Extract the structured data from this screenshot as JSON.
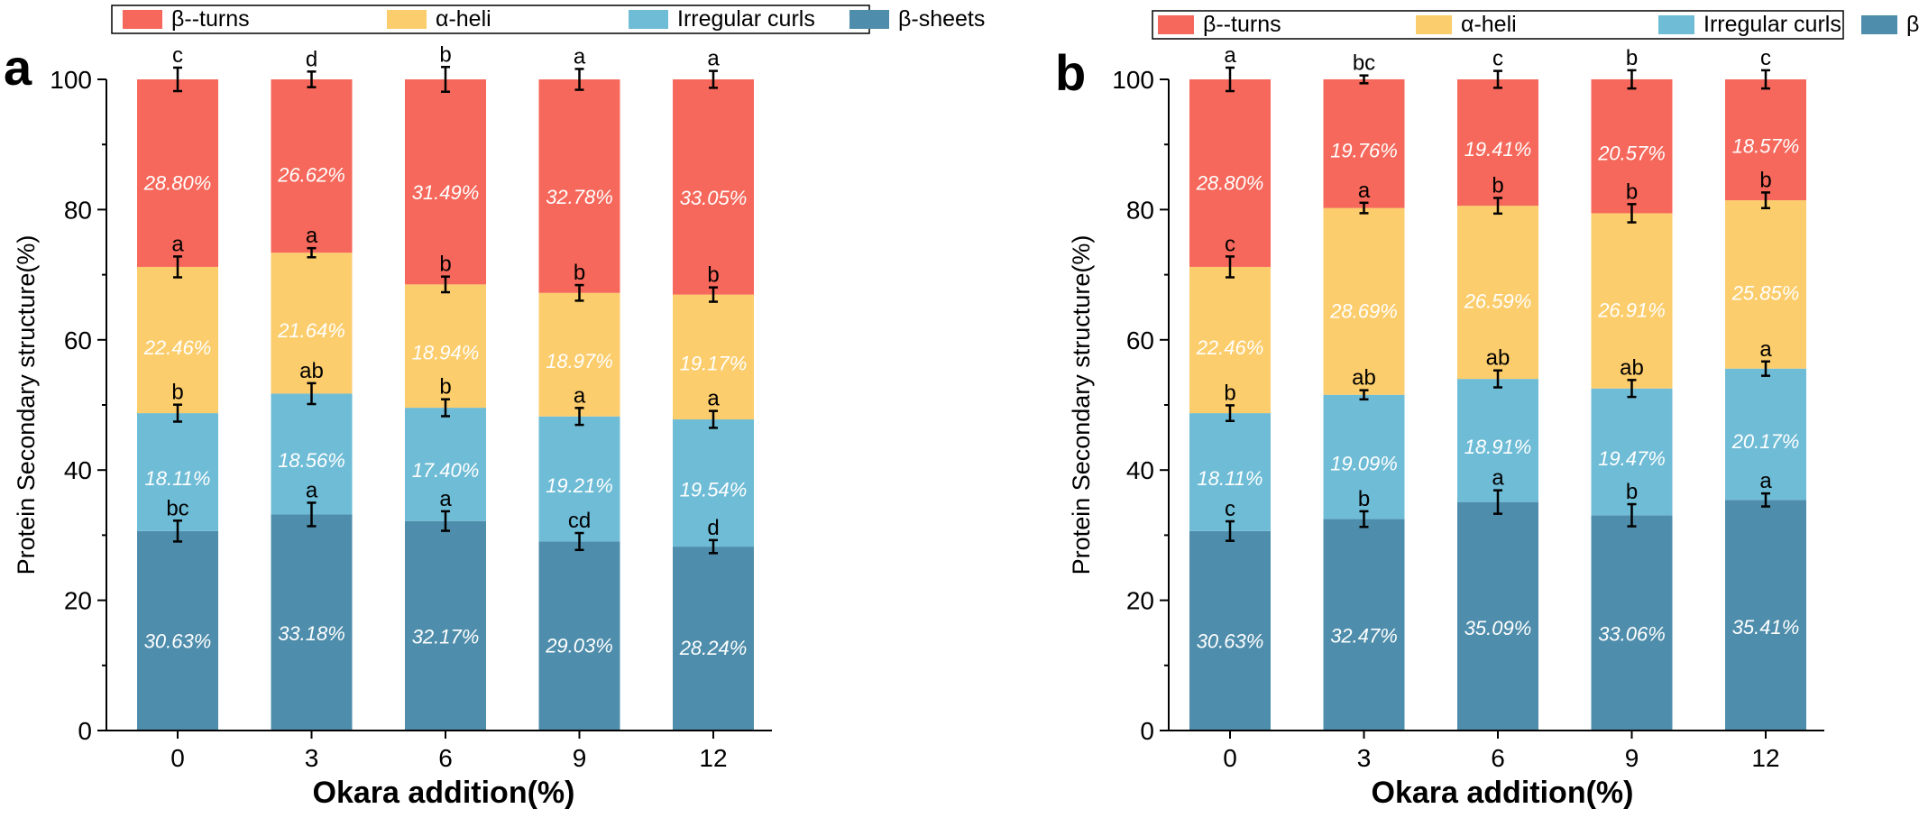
{
  "colors": {
    "beta_turns": "#F6685B",
    "alpha_helix": "#FCCD6C",
    "irregular_curls": "#6FBCD6",
    "beta_sheets": "#4E8DAB",
    "axis": "#000000",
    "segment_label": "#FFFFFF"
  },
  "chart_data": [
    {
      "panel_label": "a",
      "type": "bar",
      "stacked": true,
      "categories": [
        "0",
        "3",
        "6",
        "9",
        "12"
      ],
      "xlabel": "Okara addition(%)",
      "ylabel": "Protein Secondary structure(%)",
      "ylim": [
        0,
        100
      ],
      "yticks": [
        0,
        20,
        40,
        60,
        80,
        100
      ],
      "legend": {
        "placement": "top",
        "entries": [
          "β--turns",
          "α-heli",
          "Irregular curls",
          "β-sheets"
        ]
      },
      "series": [
        {
          "name": "β-sheets",
          "color_key": "beta_sheets",
          "values": [
            30.63,
            33.18,
            32.17,
            29.03,
            28.24
          ],
          "labels": [
            "30.63%",
            "33.18%",
            "32.17%",
            "29.03%",
            "28.24%"
          ],
          "errors": [
            1.6,
            1.8,
            1.5,
            1.3,
            1.0
          ],
          "letters": [
            "bc",
            "a",
            "a",
            "cd",
            "d"
          ]
        },
        {
          "name": "Irregular curls",
          "color_key": "irregular_curls",
          "values": [
            18.11,
            18.56,
            17.4,
            19.21,
            19.54
          ],
          "labels": [
            "18.11%",
            "18.56%",
            "17.40%",
            "19.21%",
            "19.54%"
          ],
          "errors": [
            1.3,
            1.6,
            1.3,
            1.3,
            1.3
          ],
          "letters": [
            "b",
            "ab",
            "b",
            "a",
            "a"
          ]
        },
        {
          "name": "α-heli",
          "color_key": "alpha_helix",
          "values": [
            22.46,
            21.64,
            18.94,
            18.97,
            19.17
          ],
          "labels": [
            "22.46%",
            "21.64%",
            "18.94%",
            "18.97%",
            "19.17%"
          ],
          "errors": [
            1.6,
            0.7,
            1.2,
            1.2,
            1.1
          ],
          "letters": [
            "a",
            "a",
            "b",
            "b",
            "b"
          ]
        },
        {
          "name": "β--turns",
          "color_key": "beta_turns",
          "values": [
            28.8,
            26.62,
            31.49,
            32.78,
            33.05
          ],
          "labels": [
            "28.80%",
            "26.62%",
            "31.49%",
            "32.78%",
            "33.05%"
          ],
          "errors": [
            1.8,
            1.2,
            1.9,
            1.6,
            1.3
          ],
          "letters": [
            "c",
            "d",
            "b",
            "a",
            "a"
          ]
        }
      ]
    },
    {
      "panel_label": "b",
      "type": "bar",
      "stacked": true,
      "categories": [
        "0",
        "3",
        "6",
        "9",
        "12"
      ],
      "xlabel": "Okara addition(%)",
      "ylabel": "Protein Secondary structure(%)",
      "ylim": [
        0,
        100
      ],
      "yticks": [
        0,
        20,
        40,
        60,
        80,
        100
      ],
      "legend": {
        "placement": "top",
        "entries": [
          "β--turns",
          "α-heli",
          "Irregular curls",
          "β-sheets"
        ]
      },
      "series": [
        {
          "name": "β-sheets",
          "color_key": "beta_sheets",
          "values": [
            30.63,
            32.47,
            35.09,
            33.06,
            35.41
          ],
          "labels": [
            "30.63%",
            "32.47%",
            "35.09%",
            "33.06%",
            "35.41%"
          ],
          "errors": [
            1.5,
            1.2,
            1.8,
            1.7,
            1.0
          ],
          "letters": [
            "c",
            "b",
            "a",
            "b",
            "a"
          ]
        },
        {
          "name": "Irregular curls",
          "color_key": "irregular_curls",
          "values": [
            18.11,
            19.09,
            18.91,
            19.47,
            20.17
          ],
          "labels": [
            "18.11%",
            "19.09%",
            "18.91%",
            "19.47%",
            "20.17%"
          ],
          "errors": [
            1.2,
            0.7,
            1.3,
            1.3,
            1.1
          ],
          "letters": [
            "b",
            "ab",
            "ab",
            "ab",
            "a"
          ]
        },
        {
          "name": "α-heli",
          "color_key": "alpha_helix",
          "values": [
            22.46,
            28.69,
            26.59,
            26.91,
            25.85
          ],
          "labels": [
            "22.46%",
            "28.69%",
            "26.59%",
            "26.91%",
            "25.85%"
          ],
          "errors": [
            1.6,
            0.8,
            1.2,
            1.4,
            1.2
          ],
          "letters": [
            "c",
            "a",
            "b",
            "b",
            "b"
          ]
        },
        {
          "name": "β--turns",
          "color_key": "beta_turns",
          "values": [
            28.8,
            19.76,
            19.41,
            20.57,
            18.57
          ],
          "labels": [
            "28.80%",
            "19.76%",
            "19.41%",
            "20.57%",
            "18.57%"
          ],
          "errors": [
            1.8,
            0.6,
            1.3,
            1.4,
            1.4
          ],
          "letters": [
            "a",
            "bc",
            "c",
            "b",
            "c"
          ]
        }
      ]
    }
  ]
}
